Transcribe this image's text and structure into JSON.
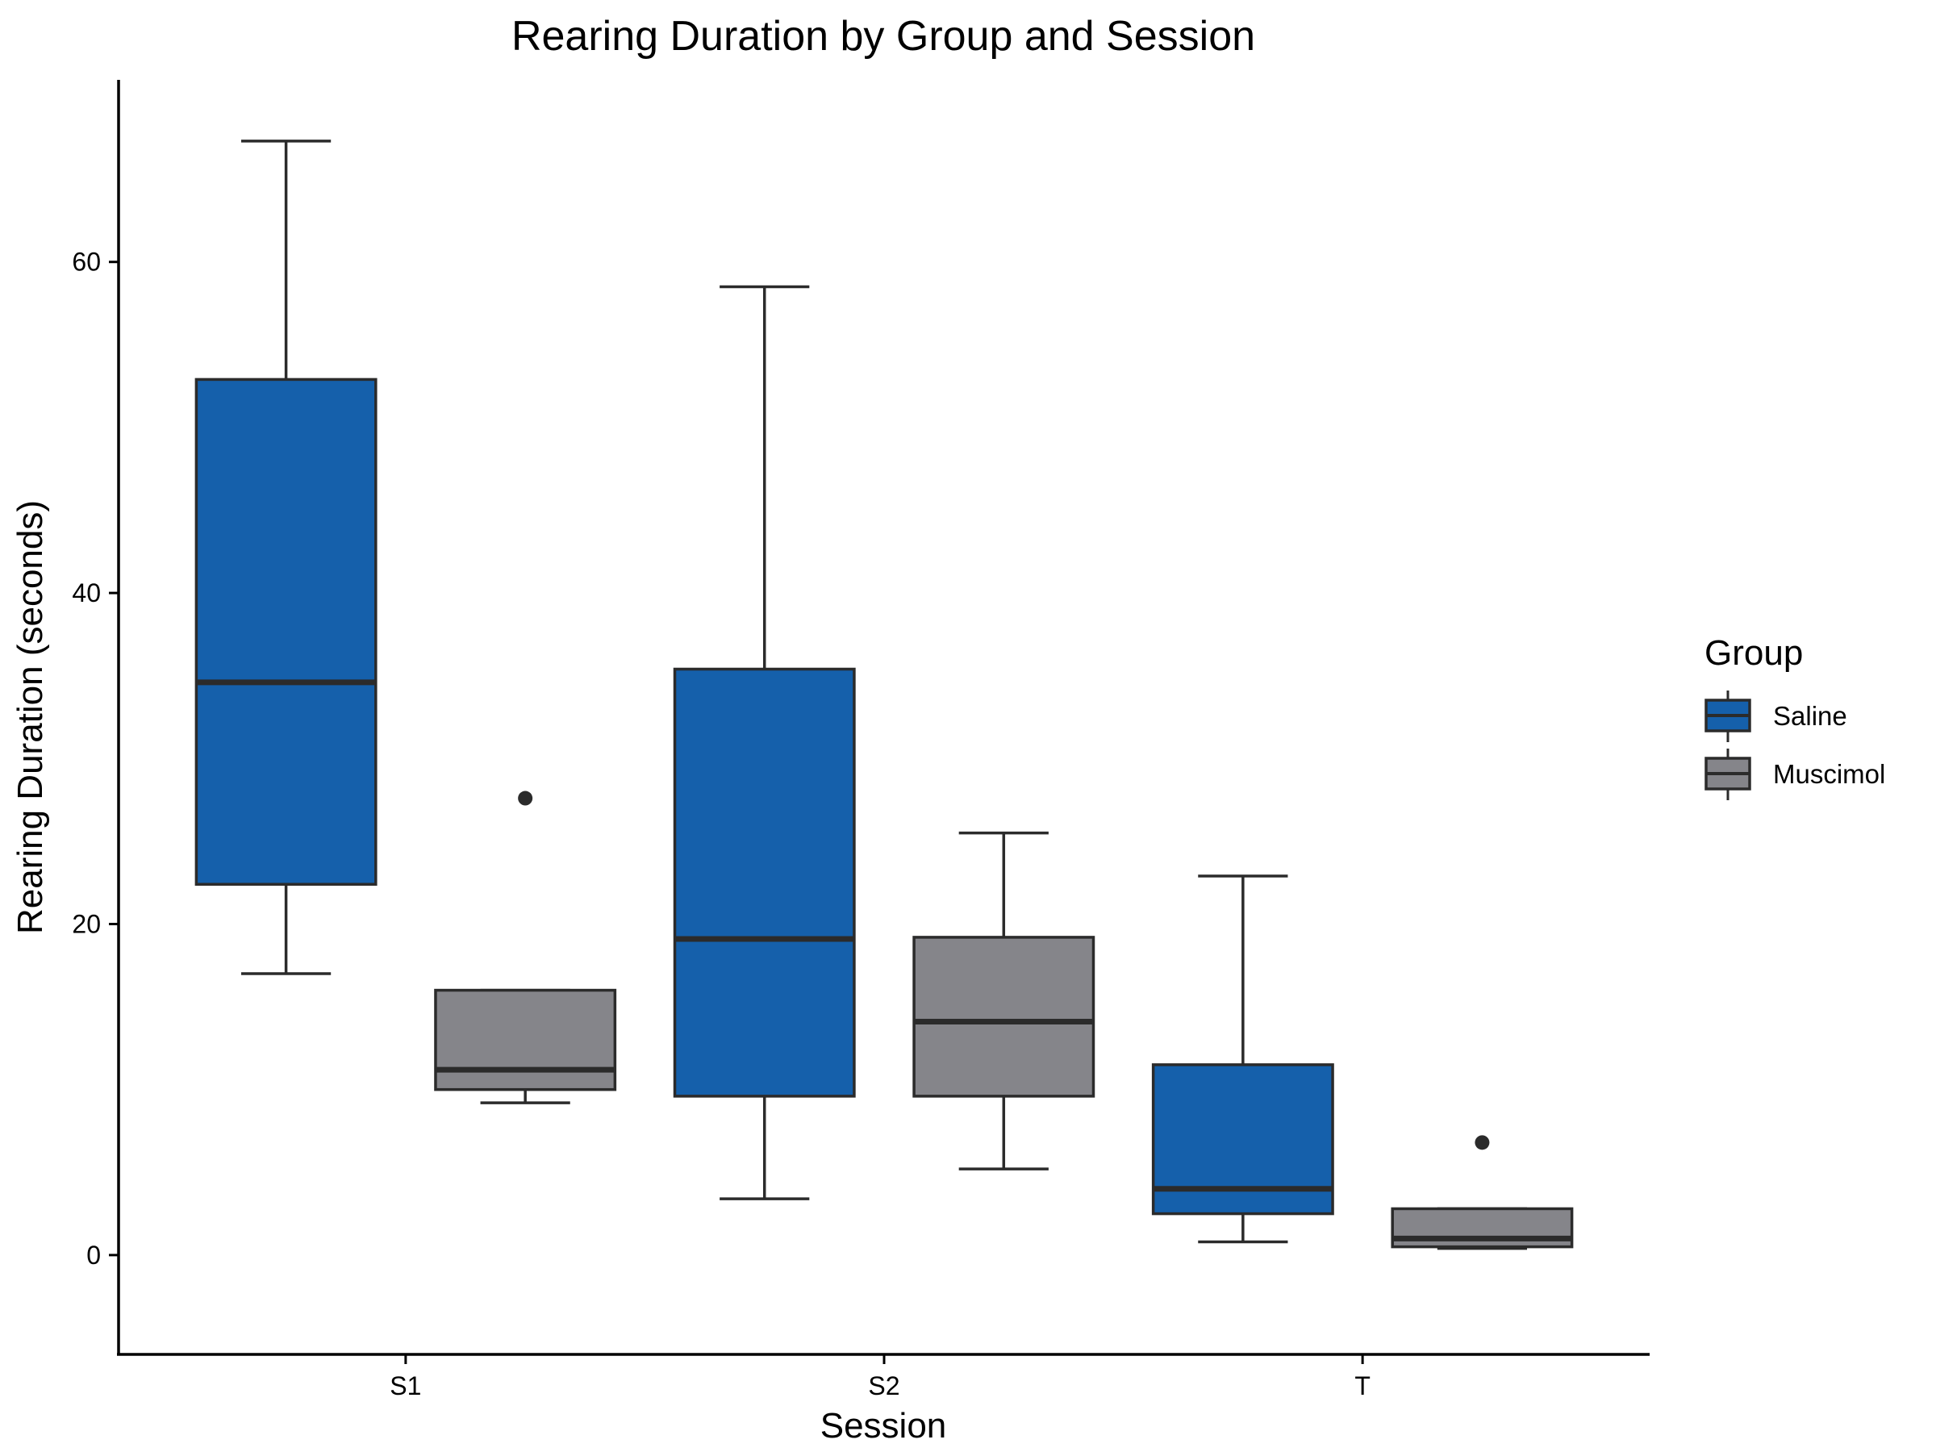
{
  "chart_data": {
    "type": "boxplot",
    "title": "Rearing Duration by Group and Session",
    "xlabel": "Session",
    "ylabel": "Rearing Duration (seconds)",
    "categories": [
      "S1",
      "S2",
      "T"
    ],
    "ylim": [
      -6,
      71
    ],
    "yticks": [
      0,
      20,
      40,
      60
    ],
    "grid": false,
    "legend": {
      "title": "Group",
      "placement": "right",
      "entries": [
        {
          "label": "Saline",
          "color": "#1560AB"
        },
        {
          "label": "Muscimol",
          "color": "#85858A"
        }
      ]
    },
    "series": [
      {
        "name": "Saline",
        "color": "#1560AB",
        "boxes": [
          {
            "category": "S1",
            "whisker_low": 17.0,
            "q1": 22.4,
            "median": 34.6,
            "q3": 52.9,
            "whisker_high": 67.3,
            "outliers": []
          },
          {
            "category": "S2",
            "whisker_low": 3.4,
            "q1": 9.6,
            "median": 19.1,
            "q3": 35.4,
            "whisker_high": 58.5,
            "outliers": []
          },
          {
            "category": "T",
            "whisker_low": 0.8,
            "q1": 2.5,
            "median": 4.0,
            "q3": 11.5,
            "whisker_high": 22.9,
            "outliers": []
          }
        ]
      },
      {
        "name": "Muscimol",
        "color": "#85858A",
        "boxes": [
          {
            "category": "S1",
            "whisker_low": 9.2,
            "q1": 10.0,
            "median": 11.2,
            "q3": 16.0,
            "whisker_high": 16.0,
            "outliers": [
              27.6
            ]
          },
          {
            "category": "S2",
            "whisker_low": 5.2,
            "q1": 9.6,
            "median": 14.1,
            "q3": 19.2,
            "whisker_high": 25.5,
            "outliers": []
          },
          {
            "category": "T",
            "whisker_low": 0.4,
            "q1": 0.5,
            "median": 1.0,
            "q3": 2.8,
            "whisker_high": 2.8,
            "outliers": [
              6.8
            ]
          }
        ]
      }
    ]
  }
}
